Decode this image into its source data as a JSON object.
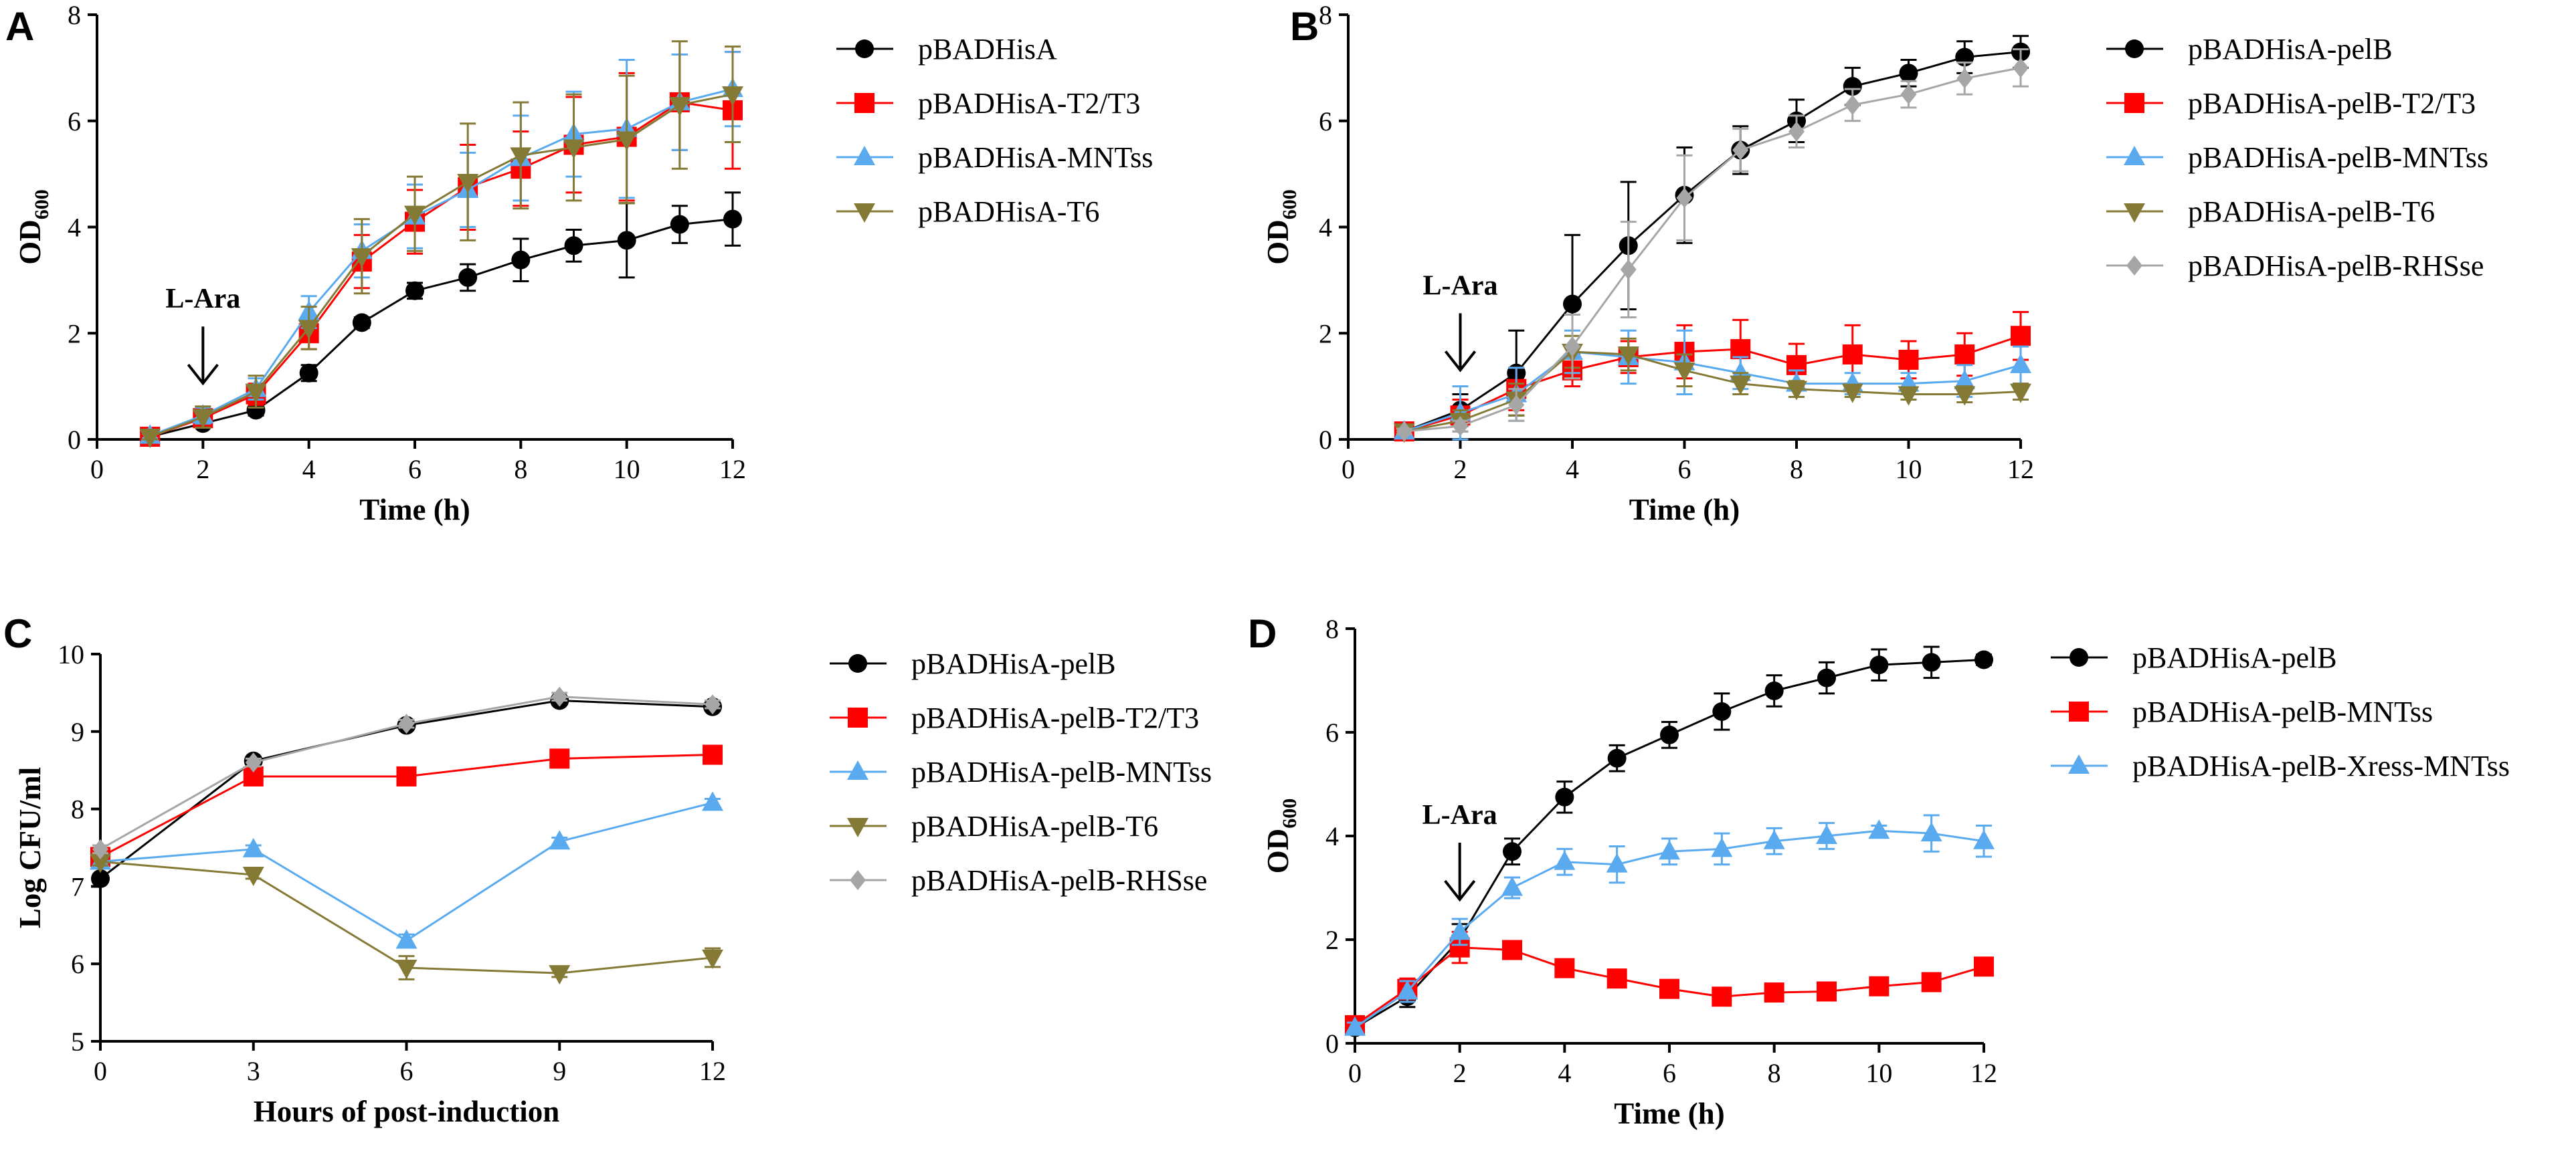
{
  "colors": {
    "black": "#000000",
    "red": "#ff0000",
    "blue": "#5aaaf0",
    "olive": "#857a35",
    "gray": "#a6a6a6"
  },
  "chart_data": [
    {
      "panel": "A",
      "type": "line",
      "xlabel": "Time (h)",
      "ylabel_main": "OD",
      "ylabel_sub": "600",
      "xlim": [
        0,
        12
      ],
      "ylim": [
        0,
        8
      ],
      "xticks": [
        0,
        2,
        4,
        6,
        8,
        10,
        12
      ],
      "yticks": [
        0,
        2,
        4,
        6,
        8
      ],
      "annotation": {
        "label": "L-Ara",
        "x": 2
      },
      "series": [
        {
          "name": "pBADHisA",
          "color": "black",
          "marker": "circle",
          "x": [
            1,
            2,
            3,
            4,
            5,
            6,
            7,
            8,
            9,
            10,
            11,
            12
          ],
          "y": [
            0.05,
            0.3,
            0.55,
            1.25,
            2.2,
            2.8,
            3.05,
            3.38,
            3.65,
            3.75,
            4.05,
            4.15
          ],
          "err": [
            0.04,
            0.05,
            0.1,
            0.15,
            0.1,
            0.15,
            0.25,
            0.4,
            0.3,
            0.7,
            0.35,
            0.5
          ]
        },
        {
          "name": "pBADHisA-T2/T3",
          "color": "red",
          "marker": "square",
          "x": [
            1,
            2,
            3,
            4,
            5,
            6,
            7,
            8,
            9,
            10,
            11,
            12
          ],
          "y": [
            0.05,
            0.4,
            0.85,
            2.0,
            3.35,
            4.1,
            4.75,
            5.1,
            5.55,
            5.7,
            6.35,
            6.2
          ],
          "err": [
            0.05,
            0.15,
            0.2,
            0.3,
            0.5,
            0.6,
            0.8,
            0.7,
            0.9,
            1.2,
            0.9,
            1.1
          ]
        },
        {
          "name": "pBADHisA-MNTss",
          "color": "blue",
          "marker": "triangle",
          "x": [
            1,
            2,
            3,
            4,
            5,
            6,
            7,
            8,
            9,
            10,
            11,
            12
          ],
          "y": [
            0.07,
            0.45,
            0.95,
            2.4,
            3.55,
            4.2,
            4.7,
            5.3,
            5.75,
            5.85,
            6.35,
            6.6
          ],
          "err": [
            0.05,
            0.15,
            0.2,
            0.3,
            0.5,
            0.6,
            0.7,
            0.8,
            0.8,
            1.3,
            0.9,
            0.7
          ]
        },
        {
          "name": "pBADHisA-T6",
          "color": "olive",
          "marker": "triangle-down",
          "x": [
            1,
            2,
            3,
            4,
            5,
            6,
            7,
            8,
            9,
            10,
            11,
            12
          ],
          "y": [
            0.05,
            0.42,
            0.9,
            2.1,
            3.45,
            4.25,
            4.85,
            5.35,
            5.5,
            5.65,
            6.3,
            6.5
          ],
          "err": [
            0.05,
            0.2,
            0.3,
            0.4,
            0.7,
            0.7,
            1.1,
            1.0,
            1.0,
            1.2,
            1.2,
            0.9
          ]
        }
      ]
    },
    {
      "panel": "B",
      "type": "line",
      "xlabel": "Time (h)",
      "ylabel_main": "OD",
      "ylabel_sub": "600",
      "xlim": [
        0,
        12
      ],
      "ylim": [
        0,
        8
      ],
      "xticks": [
        0,
        2,
        4,
        6,
        8,
        10,
        12
      ],
      "yticks": [
        0,
        2,
        4,
        6,
        8
      ],
      "annotation": {
        "label": "L-Ara",
        "x": 2
      },
      "series": [
        {
          "name": "pBADHisA-pelB",
          "color": "black",
          "marker": "circle",
          "x": [
            1,
            2,
            3,
            4,
            5,
            6,
            7,
            8,
            9,
            10,
            11,
            12
          ],
          "y": [
            0.15,
            0.55,
            1.25,
            2.55,
            3.65,
            4.6,
            5.45,
            6.0,
            6.65,
            6.9,
            7.2,
            7.3
          ],
          "err": [
            0.05,
            0.3,
            0.8,
            1.3,
            1.2,
            0.9,
            0.45,
            0.4,
            0.35,
            0.25,
            0.3,
            0.3
          ]
        },
        {
          "name": "pBADHisA-pelB-T2/T3",
          "color": "red",
          "marker": "square",
          "x": [
            1,
            2,
            3,
            4,
            5,
            6,
            7,
            8,
            9,
            10,
            11,
            12
          ],
          "y": [
            0.15,
            0.45,
            0.95,
            1.3,
            1.55,
            1.65,
            1.7,
            1.4,
            1.6,
            1.5,
            1.6,
            1.95
          ],
          "err": [
            0.05,
            0.3,
            0.4,
            0.3,
            0.3,
            0.5,
            0.55,
            0.4,
            0.55,
            0.35,
            0.4,
            0.45
          ]
        },
        {
          "name": "pBADHisA-pelB-MNTss",
          "color": "blue",
          "marker": "triangle",
          "x": [
            1,
            2,
            3,
            4,
            5,
            6,
            7,
            8,
            9,
            10,
            11,
            12
          ],
          "y": [
            0.15,
            0.5,
            0.85,
            1.65,
            1.55,
            1.45,
            1.25,
            1.05,
            1.05,
            1.05,
            1.1,
            1.4
          ],
          "err": [
            0.05,
            0.5,
            0.5,
            0.4,
            0.5,
            0.6,
            0.3,
            0.25,
            0.2,
            0.2,
            0.3,
            0.35
          ]
        },
        {
          "name": "pBADHisA-pelB-T6",
          "color": "olive",
          "marker": "triangle-down",
          "x": [
            1,
            2,
            3,
            4,
            5,
            6,
            7,
            8,
            9,
            10,
            11,
            12
          ],
          "y": [
            0.15,
            0.35,
            0.75,
            1.65,
            1.6,
            1.3,
            1.05,
            0.95,
            0.9,
            0.85,
            0.85,
            0.9
          ],
          "err": [
            0.05,
            0.2,
            0.3,
            0.3,
            0.3,
            0.3,
            0.2,
            0.15,
            0.1,
            0.1,
            0.15,
            0.15
          ]
        },
        {
          "name": "pBADHisA-pelB-RHSse",
          "color": "gray",
          "marker": "diamond",
          "x": [
            1,
            2,
            3,
            4,
            5,
            6,
            7,
            8,
            9,
            10,
            11,
            12
          ],
          "y": [
            0.15,
            0.25,
            0.65,
            1.75,
            3.2,
            4.55,
            5.45,
            5.8,
            6.3,
            6.5,
            6.8,
            7.0
          ],
          "err": [
            0.05,
            0.1,
            0.3,
            0.6,
            0.9,
            0.8,
            0.4,
            0.3,
            0.3,
            0.25,
            0.3,
            0.35
          ]
        }
      ]
    },
    {
      "panel": "C",
      "type": "line",
      "xlabel": "Hours of post-induction",
      "ylabel_main": "Log CFU/ml",
      "ylabel_sub": "",
      "xlim": [
        0,
        12
      ],
      "ylim": [
        5,
        10
      ],
      "xticks": [
        0,
        3,
        6,
        9,
        12
      ],
      "yticks": [
        5,
        6,
        7,
        8,
        9,
        10
      ],
      "annotation": null,
      "series": [
        {
          "name": "pBADHisA-pelB",
          "color": "black",
          "marker": "circle",
          "x": [
            0,
            3,
            6,
            9,
            12
          ],
          "y": [
            7.1,
            8.62,
            9.08,
            9.4,
            9.32
          ],
          "err": [
            0.05,
            0.05,
            0.05,
            0.05,
            0.05
          ]
        },
        {
          "name": "pBADHisA-pelB-T2/T3",
          "color": "red",
          "marker": "square",
          "x": [
            0,
            3,
            6,
            9,
            12
          ],
          "y": [
            7.38,
            8.42,
            8.42,
            8.65,
            8.7
          ],
          "err": [
            0.05,
            0.05,
            0.05,
            0.05,
            0.05
          ]
        },
        {
          "name": "pBADHisA-pelB-MNTss",
          "color": "blue",
          "marker": "triangle",
          "x": [
            0,
            3,
            6,
            9,
            12
          ],
          "y": [
            7.32,
            7.48,
            6.3,
            7.58,
            8.08
          ],
          "err": [
            0.05,
            0.05,
            0.08,
            0.05,
            0.05
          ]
        },
        {
          "name": "pBADHisA-pelB-T6",
          "color": "olive",
          "marker": "triangle-down",
          "x": [
            0,
            3,
            6,
            9,
            12
          ],
          "y": [
            7.32,
            7.15,
            5.95,
            5.88,
            6.08
          ],
          "err": [
            0.05,
            0.05,
            0.15,
            0.05,
            0.12
          ]
        },
        {
          "name": "pBADHisA-pelB-RHSse",
          "color": "gray",
          "marker": "diamond",
          "x": [
            0,
            3,
            6,
            9,
            12
          ],
          "y": [
            7.48,
            8.6,
            9.1,
            9.45,
            9.35
          ],
          "err": [
            0.05,
            0.05,
            0.05,
            0.05,
            0.05
          ]
        }
      ]
    },
    {
      "panel": "D",
      "type": "line",
      "xlabel": "Time (h)",
      "ylabel_main": "OD",
      "ylabel_sub": "600",
      "xlim": [
        0,
        12
      ],
      "ylim": [
        0,
        8
      ],
      "xticks": [
        0,
        2,
        4,
        6,
        8,
        10,
        12
      ],
      "yticks": [
        0,
        2,
        4,
        6,
        8
      ],
      "annotation": {
        "label": "L-Ara",
        "x": 2
      },
      "series": [
        {
          "name": "pBADHisA-pelB",
          "color": "black",
          "marker": "circle",
          "x": [
            0,
            1,
            2,
            3,
            4,
            5,
            6,
            7,
            8,
            9,
            10,
            11,
            12
          ],
          "y": [
            0.3,
            0.9,
            2.0,
            3.7,
            4.75,
            5.5,
            5.95,
            6.4,
            6.8,
            7.05,
            7.3,
            7.35,
            7.4
          ],
          "err": [
            0.1,
            0.2,
            0.3,
            0.25,
            0.3,
            0.25,
            0.25,
            0.35,
            0.3,
            0.3,
            0.3,
            0.3,
            0.1
          ]
        },
        {
          "name": "pBADHisA-pelB-MNTss",
          "color": "red",
          "marker": "square",
          "x": [
            0,
            1,
            2,
            3,
            4,
            5,
            6,
            7,
            8,
            9,
            10,
            11,
            12
          ],
          "y": [
            0.35,
            1.05,
            1.85,
            1.8,
            1.45,
            1.25,
            1.05,
            0.9,
            0.98,
            1.0,
            1.1,
            1.18,
            1.48
          ],
          "err": [
            0.1,
            0.2,
            0.3,
            0.1,
            0.1,
            0.1,
            0.1,
            0.1,
            0.1,
            0.1,
            0.1,
            0.1,
            0.1
          ]
        },
        {
          "name": "pBADHisA-pelB-Xress-MNTss",
          "color": "blue",
          "marker": "triangle",
          "x": [
            0,
            1,
            2,
            3,
            4,
            5,
            6,
            7,
            8,
            9,
            10,
            11,
            12
          ],
          "y": [
            0.3,
            1.0,
            2.15,
            3.0,
            3.5,
            3.45,
            3.7,
            3.75,
            3.9,
            4.0,
            4.1,
            4.05,
            3.9
          ],
          "err": [
            0.1,
            0.2,
            0.25,
            0.2,
            0.25,
            0.35,
            0.25,
            0.3,
            0.25,
            0.25,
            0.1,
            0.35,
            0.3
          ]
        }
      ]
    }
  ]
}
